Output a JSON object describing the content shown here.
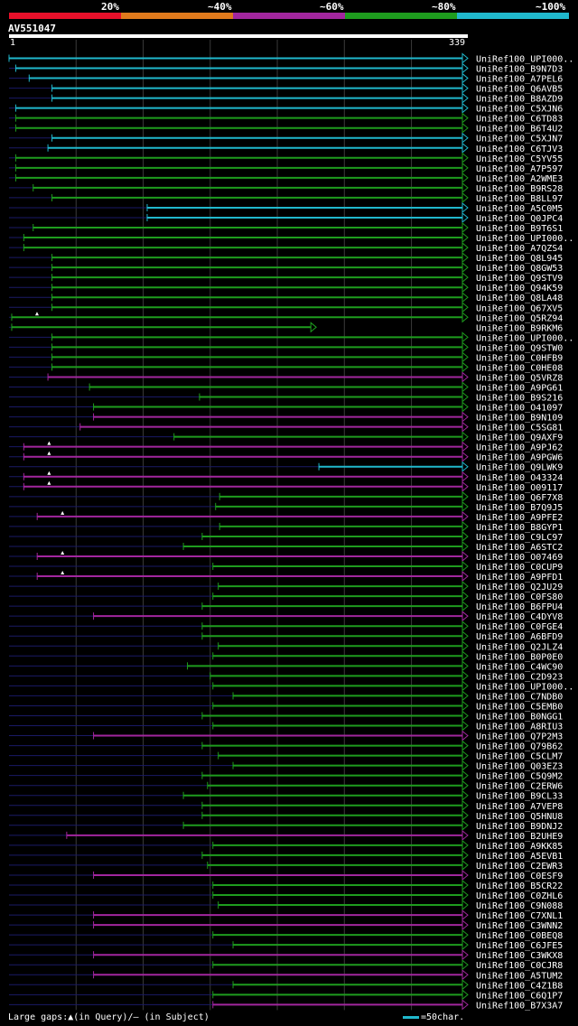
{
  "chart_data": {
    "type": "alignment-overview",
    "query_id": "AV551047",
    "query_start": "1",
    "query_end": "339",
    "identity_legend": [
      "20%",
      "~40%",
      "~60%",
      "~80%",
      "~100%"
    ],
    "identity_colors": [
      "#e8102a",
      "#e07a1c",
      "#a2269e",
      "#1e9c1e",
      "#20b8cc"
    ],
    "colors": {
      "gap": "#1a1a66",
      "grid": "#3a3a3a",
      "arrow": "#ffffff"
    },
    "footer_gaps": "Large gaps:▲(in Query)/– (in Subject)",
    "footer_scale": "=50char.",
    "hits": [
      {
        "label": "UniRef100_UPI000..",
        "s": 1,
        "e": 339,
        "id": 5,
        "arrow": 1
      },
      {
        "label": "UniRef100_B9N7D3",
        "s": 6,
        "e": 339,
        "id": 5,
        "arrow": 1
      },
      {
        "label": "UniRef100_A7PEL6",
        "s": 16,
        "e": 339,
        "id": 5,
        "arrow": 1
      },
      {
        "label": "UniRef100_Q6AVB5",
        "s": 33,
        "e": 339,
        "id": 5,
        "arrow": 1
      },
      {
        "label": "UniRef100_B8AZD9",
        "s": 33,
        "e": 339,
        "id": 5,
        "arrow": 1
      },
      {
        "label": "UniRef100_C5XJN6",
        "s": 6,
        "e": 339,
        "id": 5,
        "arrow": 1
      },
      {
        "label": "UniRef100_C6TD83",
        "s": 6,
        "e": 339,
        "id": 4,
        "arrow": 1
      },
      {
        "label": "UniRef100_B6T4U2",
        "s": 6,
        "e": 339,
        "id": 4,
        "arrow": 1
      },
      {
        "label": "UniRef100_C5XJN7",
        "s": 33,
        "e": 339,
        "id": 5,
        "arrow": 1
      },
      {
        "label": "UniRef100_C6TJV3",
        "s": 30,
        "e": 339,
        "id": 5,
        "arrow": 1
      },
      {
        "label": "UniRef100_C5YV55",
        "s": 6,
        "e": 339,
        "id": 4,
        "arrow": 1
      },
      {
        "label": "UniRef100_A7P597",
        "s": 6,
        "e": 339,
        "id": 4,
        "arrow": 1
      },
      {
        "label": "UniRef100_A2WME3",
        "s": 6,
        "e": 339,
        "id": 4,
        "arrow": 1
      },
      {
        "label": "UniRef100_B9RS28",
        "s": 19,
        "e": 339,
        "id": 4,
        "arrow": 1
      },
      {
        "label": "UniRef100_B8LL97",
        "s": 33,
        "e": 339,
        "id": 4,
        "arrow": 1
      },
      {
        "label": "UniRef100_A5C0M5",
        "s": 104,
        "e": 339,
        "id": 5,
        "arrow": 1
      },
      {
        "label": "UniRef100_Q0JPC4",
        "s": 104,
        "e": 339,
        "id": 5,
        "arrow": 1
      },
      {
        "label": "UniRef100_B9T6S1",
        "s": 19,
        "e": 339,
        "id": 4,
        "arrow": 1
      },
      {
        "label": "UniRef100_UPI000..",
        "s": 12,
        "e": 339,
        "id": 4,
        "arrow": 1
      },
      {
        "label": "UniRef100_A7QZS4",
        "s": 12,
        "e": 339,
        "id": 4,
        "arrow": 1
      },
      {
        "label": "UniRef100_Q8L945",
        "s": 33,
        "e": 339,
        "id": 4,
        "arrow": 1
      },
      {
        "label": "UniRef100_Q8GW53",
        "s": 33,
        "e": 339,
        "id": 4,
        "arrow": 1
      },
      {
        "label": "UniRef100_Q9STV9",
        "s": 33,
        "e": 339,
        "id": 4,
        "arrow": 1
      },
      {
        "label": "UniRef100_Q94K59",
        "s": 33,
        "e": 339,
        "id": 4,
        "arrow": 1
      },
      {
        "label": "UniRef100_Q8LA48",
        "s": 33,
        "e": 339,
        "id": 4,
        "arrow": 1
      },
      {
        "label": "UniRef100_Q67XV5",
        "s": 33,
        "e": 339,
        "id": 4,
        "arrow": 1
      },
      {
        "label": "UniRef100_Q5RZ94",
        "s": 3,
        "e": 339,
        "id": 4,
        "arrow": 1,
        "qgap": true
      },
      {
        "label": "UniRef100_B9RKM6",
        "s": 3,
        "e": 226,
        "id": 4,
        "arrow": 1
      },
      {
        "label": "UniRef100_UPI000..",
        "s": 33,
        "e": 339,
        "id": 4,
        "arrow": 1
      },
      {
        "label": "UniRef100_Q9STW0",
        "s": 33,
        "e": 339,
        "id": 4,
        "arrow": 1
      },
      {
        "label": "UniRef100_C0HFB9",
        "s": 33,
        "e": 339,
        "id": 4,
        "arrow": 1
      },
      {
        "label": "UniRef100_C0HE08",
        "s": 33,
        "e": 339,
        "id": 4,
        "arrow": 1
      },
      {
        "label": "UniRef100_Q5VRZ8",
        "s": 30,
        "e": 339,
        "id": 3,
        "arrow": 1
      },
      {
        "label": "UniRef100_A9PG61",
        "s": 61,
        "e": 339,
        "id": 4,
        "arrow": 1
      },
      {
        "label": "UniRef100_B9S216",
        "s": 143,
        "e": 339,
        "id": 4,
        "arrow": 1
      },
      {
        "label": "UniRef100_O41097",
        "s": 64,
        "e": 339,
        "id": 4,
        "arrow": 1
      },
      {
        "label": "UniRef100_B9N109",
        "s": 64,
        "e": 339,
        "id": 3,
        "arrow": 1
      },
      {
        "label": "UniRef100_C5SG81",
        "s": 54,
        "e": 339,
        "id": 3,
        "arrow": 1
      },
      {
        "label": "UniRef100_Q9AXF9",
        "s": 124,
        "e": 339,
        "id": 4,
        "arrow": 1
      },
      {
        "label": "UniRef100_A9PJ62",
        "s": 12,
        "e": 339,
        "id": 3,
        "arrow": 1,
        "qgap": true
      },
      {
        "label": "UniRef100_A9PGW6",
        "s": 12,
        "e": 339,
        "id": 3,
        "arrow": 1,
        "qgap": true
      },
      {
        "label": "UniRef100_Q9LWK9",
        "s": 232,
        "e": 339,
        "id": 5,
        "arrow": 1
      },
      {
        "label": "UniRef100_O43324",
        "s": 12,
        "e": 339,
        "id": 3,
        "arrow": 1,
        "qgap": true
      },
      {
        "label": "UniRef100_O09117",
        "s": 12,
        "e": 339,
        "id": 3,
        "arrow": 1,
        "qgap": true
      },
      {
        "label": "UniRef100_Q6F7X8",
        "s": 158,
        "e": 339,
        "id": 4,
        "arrow": 1
      },
      {
        "label": "UniRef100_B7Q9J5",
        "s": 155,
        "e": 339,
        "id": 4,
        "arrow": 1
      },
      {
        "label": "UniRef100_A9PFE2",
        "s": 22,
        "e": 339,
        "id": 3,
        "arrow": 1,
        "qgap": true
      },
      {
        "label": "UniRef100_B8GYP1",
        "s": 158,
        "e": 339,
        "id": 4,
        "arrow": 1
      },
      {
        "label": "UniRef100_C9LC97",
        "s": 145,
        "e": 339,
        "id": 4,
        "arrow": 1
      },
      {
        "label": "UniRef100_A6STC2",
        "s": 131,
        "e": 339,
        "id": 4,
        "arrow": 1
      },
      {
        "label": "UniRef100_O07469",
        "s": 22,
        "e": 339,
        "id": 3,
        "arrow": 1,
        "qgap": true
      },
      {
        "label": "UniRef100_C0CUP9",
        "s": 153,
        "e": 339,
        "id": 4,
        "arrow": 1
      },
      {
        "label": "UniRef100_A9PFD1",
        "s": 22,
        "e": 339,
        "id": 3,
        "arrow": 1,
        "qgap": true
      },
      {
        "label": "UniRef100_Q2JU29",
        "s": 157,
        "e": 339,
        "id": 4,
        "arrow": 1
      },
      {
        "label": "UniRef100_C0FS80",
        "s": 153,
        "e": 339,
        "id": 4,
        "arrow": 1
      },
      {
        "label": "UniRef100_B6FPU4",
        "s": 145,
        "e": 339,
        "id": 4,
        "arrow": 1
      },
      {
        "label": "UniRef100_C4DYV8",
        "s": 64,
        "e": 339,
        "id": 3,
        "arrow": 1
      },
      {
        "label": "UniRef100_C0FGE4",
        "s": 145,
        "e": 339,
        "id": 4,
        "arrow": 1
      },
      {
        "label": "UniRef100_A6BFD9",
        "s": 145,
        "e": 339,
        "id": 4,
        "arrow": 1
      },
      {
        "label": "UniRef100_Q2JLZ4",
        "s": 157,
        "e": 339,
        "id": 4,
        "arrow": 1
      },
      {
        "label": "UniRef100_B0P0E0",
        "s": 153,
        "e": 339,
        "id": 4,
        "arrow": 1
      },
      {
        "label": "UniRef100_C4WC90",
        "s": 134,
        "e": 339,
        "id": 4,
        "arrow": 1
      },
      {
        "label": "UniRef100_C2D923",
        "s": 151,
        "e": 339,
        "id": 4,
        "arrow": 1
      },
      {
        "label": "UniRef100_UPI000..",
        "s": 153,
        "e": 339,
        "id": 4,
        "arrow": 1
      },
      {
        "label": "UniRef100_C7NDB0",
        "s": 168,
        "e": 339,
        "id": 4,
        "arrow": 1
      },
      {
        "label": "UniRef100_C5EMB0",
        "s": 153,
        "e": 339,
        "id": 4,
        "arrow": 1
      },
      {
        "label": "UniRef100_B0NGG1",
        "s": 145,
        "e": 339,
        "id": 4,
        "arrow": 1
      },
      {
        "label": "UniRef100_A8RIU3",
        "s": 153,
        "e": 339,
        "id": 4,
        "arrow": 1
      },
      {
        "label": "UniRef100_Q7P2M3",
        "s": 64,
        "e": 339,
        "id": 3,
        "arrow": 1
      },
      {
        "label": "UniRef100_Q79B62",
        "s": 145,
        "e": 339,
        "id": 4,
        "arrow": 1
      },
      {
        "label": "UniRef100_C5CLM7",
        "s": 157,
        "e": 339,
        "id": 4,
        "arrow": 1
      },
      {
        "label": "UniRef100_Q03EZ3",
        "s": 168,
        "e": 339,
        "id": 4,
        "arrow": 1
      },
      {
        "label": "UniRef100_C5Q9M2",
        "s": 145,
        "e": 339,
        "id": 4,
        "arrow": 1
      },
      {
        "label": "UniRef100_C2ERW6",
        "s": 149,
        "e": 339,
        "id": 4,
        "arrow": 1
      },
      {
        "label": "UniRef100_B9CL33",
        "s": 131,
        "e": 339,
        "id": 4,
        "arrow": 1
      },
      {
        "label": "UniRef100_A7VEP8",
        "s": 145,
        "e": 339,
        "id": 4,
        "arrow": 1
      },
      {
        "label": "UniRef100_Q5HNU8",
        "s": 145,
        "e": 339,
        "id": 4,
        "arrow": 1
      },
      {
        "label": "UniRef100_B9DNJ2",
        "s": 131,
        "e": 339,
        "id": 4,
        "arrow": 1
      },
      {
        "label": "UniRef100_B2UHE9",
        "s": 44,
        "e": 339,
        "id": 3,
        "arrow": 1
      },
      {
        "label": "UniRef100_A9KK85",
        "s": 153,
        "e": 339,
        "id": 4,
        "arrow": 1
      },
      {
        "label": "UniRef100_A5EVB1",
        "s": 145,
        "e": 339,
        "id": 4,
        "arrow": 1
      },
      {
        "label": "UniRef100_C2EWR3",
        "s": 149,
        "e": 339,
        "id": 4,
        "arrow": 1
      },
      {
        "label": "UniRef100_C0ESF9",
        "s": 64,
        "e": 339,
        "id": 3,
        "arrow": 1
      },
      {
        "label": "UniRef100_B5CR22",
        "s": 153,
        "e": 339,
        "id": 4,
        "arrow": 1
      },
      {
        "label": "UniRef100_C0ZHL6",
        "s": 153,
        "e": 339,
        "id": 4,
        "arrow": 1
      },
      {
        "label": "UniRef100_C9N088",
        "s": 157,
        "e": 339,
        "id": 4,
        "arrow": 1
      },
      {
        "label": "UniRef100_C7XNL1",
        "s": 64,
        "e": 339,
        "id": 3,
        "arrow": 1
      },
      {
        "label": "UniRef100_C3WNN2",
        "s": 64,
        "e": 339,
        "id": 3,
        "arrow": 1
      },
      {
        "label": "UniRef100_C0BEQ8",
        "s": 153,
        "e": 339,
        "id": 4,
        "arrow": 1
      },
      {
        "label": "UniRef100_C6JFE5",
        "s": 168,
        "e": 339,
        "id": 4,
        "arrow": 1
      },
      {
        "label": "UniRef100_C3WKX8",
        "s": 64,
        "e": 339,
        "id": 3,
        "arrow": 1
      },
      {
        "label": "UniRef100_C0CJR8",
        "s": 153,
        "e": 339,
        "id": 4,
        "arrow": 1
      },
      {
        "label": "UniRef100_A5TUM2",
        "s": 64,
        "e": 339,
        "id": 3,
        "arrow": 1
      },
      {
        "label": "UniRef100_C4Z1B8",
        "s": 168,
        "e": 339,
        "id": 4,
        "arrow": 1
      },
      {
        "label": "UniRef100_C6Q1P7",
        "s": 153,
        "e": 339,
        "id": 4,
        "arrow": 1
      },
      {
        "label": "UniRef100_B7X3A7",
        "s": 153,
        "e": 339,
        "id": 3,
        "arrow": 1
      }
    ]
  }
}
